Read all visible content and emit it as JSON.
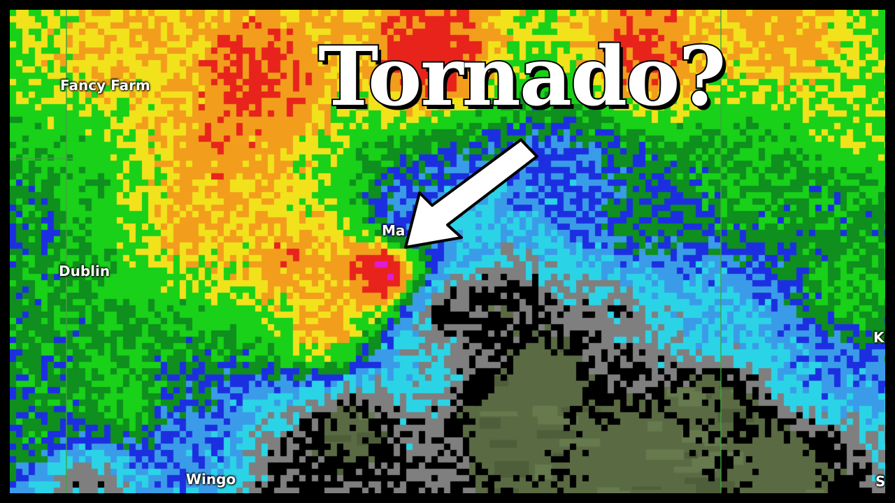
{
  "title": "Tornado?",
  "places": [
    {
      "id": "fancy-farm",
      "name": "Fancy Farm"
    },
    {
      "id": "dublin",
      "name": "Dublin"
    },
    {
      "id": "mayfield",
      "name": "Ma"
    },
    {
      "id": "wingo",
      "name": "Wingo"
    },
    {
      "id": "ki",
      "name": "Ki"
    },
    {
      "id": "s",
      "name": "S"
    }
  ],
  "radar_color_scale": [
    "#000000",
    "#7f7f7f",
    "#2ad4e6",
    "#3a9ce8",
    "#1c2fe0",
    "#0e8f1e",
    "#18d118",
    "#f2e21c",
    "#f29e1c",
    "#e8231c",
    "#e01cd8"
  ],
  "ground_color": "#5a6b44"
}
